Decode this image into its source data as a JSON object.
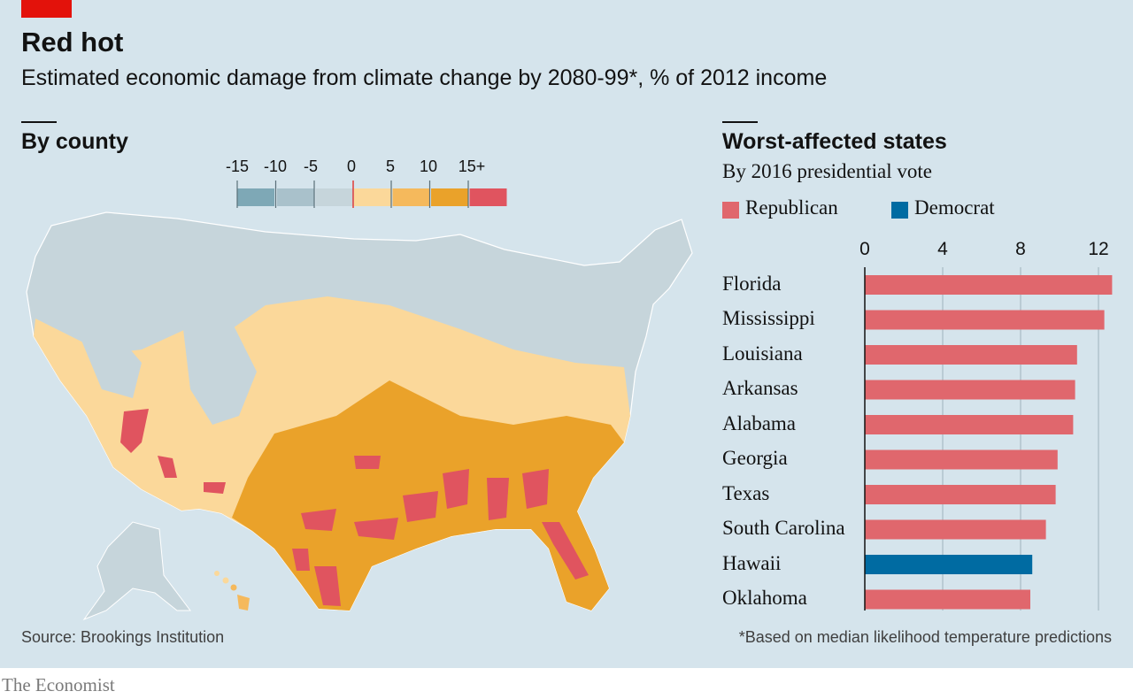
{
  "header": {
    "title": "Red hot",
    "subtitle": "Estimated economic damage from climate change by 2080-99*, % of 2012 income"
  },
  "map_section": {
    "title": "By county",
    "legend": {
      "labels": [
        "-15",
        "-10",
        "-5",
        "0",
        "5",
        "10",
        "15+"
      ],
      "colors": [
        "#7ea8b6",
        "#a9c1cb",
        "#c6d5db",
        "#fbd89a",
        "#f5b95c",
        "#eaa22a",
        "#e0545f"
      ]
    }
  },
  "chart_data": {
    "type": "bar",
    "orientation": "horizontal",
    "title": "Worst-affected states",
    "subtitle": "By 2016 presidential vote",
    "legend": [
      {
        "name": "Republican",
        "color": "#e0676d"
      },
      {
        "name": "Democrat",
        "color": "#006ba2"
      }
    ],
    "categories": [
      "Florida",
      "Mississippi",
      "Louisiana",
      "Arkansas",
      "Alabama",
      "Georgia",
      "Texas",
      "South Carolina",
      "Hawaii",
      "Oklahoma"
    ],
    "values": [
      12.7,
      12.3,
      10.9,
      10.8,
      10.7,
      9.9,
      9.8,
      9.3,
      8.6,
      8.5
    ],
    "party": [
      "Republican",
      "Republican",
      "Republican",
      "Republican",
      "Republican",
      "Republican",
      "Republican",
      "Republican",
      "Democrat",
      "Republican"
    ],
    "xlim": [
      0,
      12.8
    ],
    "ticks": [
      0,
      4,
      8,
      12
    ],
    "grid": true
  },
  "footer": {
    "source": "Source: Brookings Institution",
    "footnote": "*Based on median likelihood temperature predictions",
    "brand": "The Economist"
  }
}
